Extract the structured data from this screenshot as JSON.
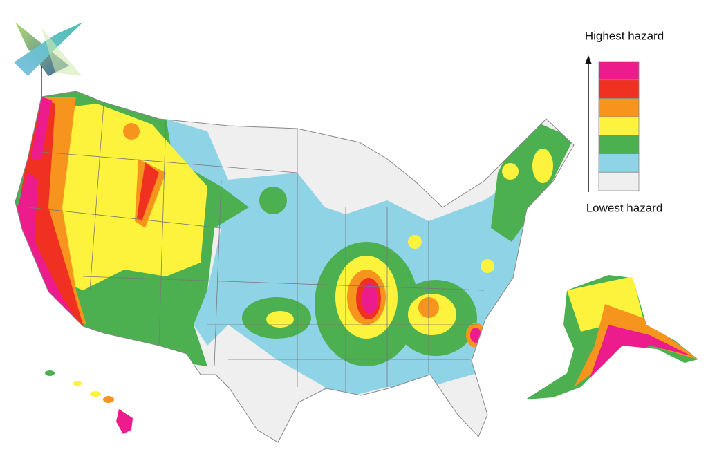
{
  "legend": {
    "top_label": "Highest hazard",
    "bottom_label": "Lowest hazard",
    "colors": [
      "#ec1c8c",
      "#f03020",
      "#f7941d",
      "#fdf33c",
      "#4caf50",
      "#8fd3e6",
      "#efefef"
    ]
  }
}
